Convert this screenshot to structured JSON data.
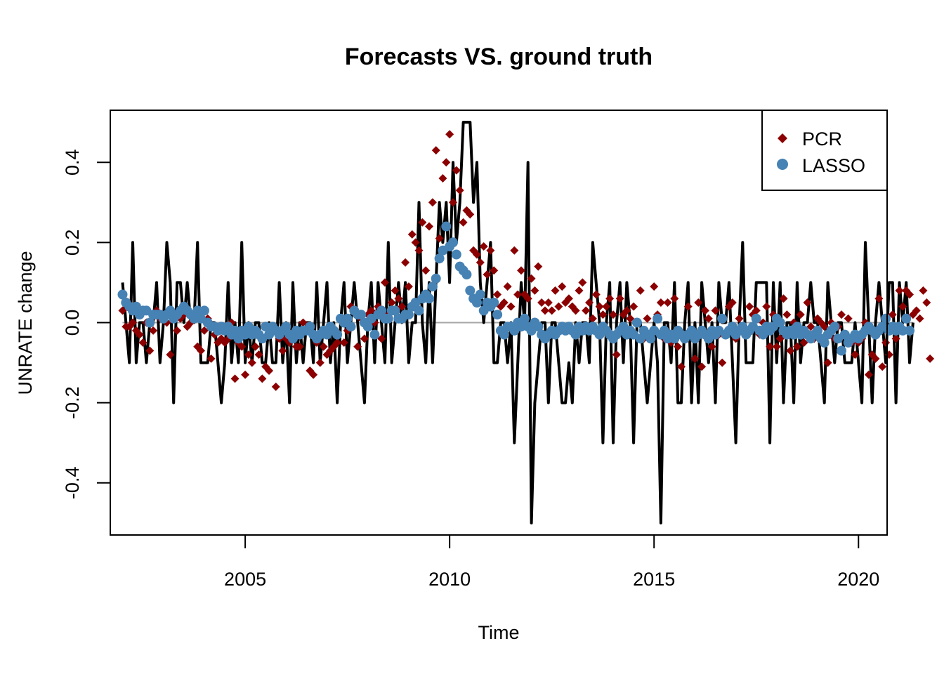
{
  "chart_data": {
    "type": "line",
    "title": "Forecasts VS. ground truth",
    "xlabel": "Time",
    "ylabel": "UNRATE change",
    "xlim": [
      2001.7,
      2020.7
    ],
    "ylim": [
      -0.53,
      0.53
    ],
    "x_ticks": [
      2005,
      2010,
      2015,
      2020
    ],
    "x_tick_labels": [
      "2005",
      "2010",
      "2015",
      "2020"
    ],
    "y_ticks": [
      -0.4,
      -0.2,
      0.0,
      0.2,
      0.4
    ],
    "y_tick_labels": [
      "-0.4",
      "-0.2",
      "0.0",
      "0.2",
      "0.4"
    ],
    "reference_line_y": 0,
    "legend_position": "top-right",
    "colors": {
      "truth": "#000000",
      "pcr": "#8B0000",
      "lasso": "#4682B4",
      "reference": "#A6A6A6"
    },
    "series": [
      {
        "key": "truth",
        "style": "line",
        "x_start": 2002.0,
        "x_step": 0.0833333,
        "values": [
          0.1,
          0.0,
          -0.1,
          0.2,
          -0.1,
          0.0,
          0.0,
          -0.1,
          0.0,
          0.0,
          0.1,
          -0.1,
          0.0,
          0.2,
          0.1,
          -0.2,
          0.1,
          0.1,
          0.0,
          0.1,
          0.0,
          0.0,
          0.2,
          -0.1,
          -0.1,
          -0.1,
          0.0,
          0.0,
          -0.1,
          -0.2,
          -0.1,
          0.1,
          -0.1,
          0.0,
          -0.1,
          0.2,
          -0.1,
          0.0,
          -0.1,
          0.0,
          0.0,
          -0.1,
          -0.1,
          0.0,
          -0.1,
          -0.1,
          0.1,
          -0.1,
          0.0,
          -0.2,
          0.1,
          -0.1,
          0.0,
          -0.1,
          0.0,
          0.0,
          -0.1,
          0.1,
          -0.1,
          0.0,
          0.1,
          -0.1,
          0.0,
          -0.2,
          0.0,
          0.1,
          -0.1,
          0.0,
          0.1,
          0.0,
          -0.1,
          -0.2,
          0.0,
          0.1,
          -0.1,
          0.1,
          0.0,
          -0.1,
          0.2,
          -0.1,
          0.0,
          0.1,
          0.0,
          0.1,
          -0.1,
          0.0,
          0.0,
          0.3,
          0.0,
          -0.1,
          0.1,
          -0.1,
          0.1,
          0.3,
          0.2,
          0.3,
          0.1,
          0.4,
          0.2,
          0.3,
          0.5,
          0.5,
          0.5,
          0.3,
          0.4,
          0.1,
          0.0,
          0.1,
          0.2,
          -0.1,
          -0.1,
          0.0,
          0.0,
          -0.1,
          0.0,
          -0.3,
          -0.1,
          0.1,
          0.0,
          0.4,
          -0.5,
          -0.2,
          -0.1,
          0.0,
          0.0,
          -0.2,
          0.0,
          0.0,
          -0.1,
          -0.2,
          -0.2,
          -0.1,
          -0.2,
          0.0,
          -0.1,
          0.0,
          0.0,
          -0.1,
          0.2,
          0.1,
          0.0,
          -0.3,
          0.0,
          0.1,
          -0.3,
          0.0,
          0.1,
          -0.1,
          0.1,
          0.0,
          -0.3,
          0.0,
          0.0,
          -0.1,
          -0.2,
          -0.1,
          0.0,
          -0.1,
          -0.5,
          0.0,
          0.0,
          -0.1,
          0.1,
          -0.2,
          -0.2,
          0.0,
          0.1,
          -0.2,
          0.0,
          -0.2,
          0.1,
          0.0,
          -0.1,
          0.0,
          -0.2,
          0.1,
          0.0,
          0.0,
          0.1,
          -0.1,
          -0.3,
          0.0,
          0.2,
          -0.1,
          -0.1,
          -0.1,
          0.1,
          0.1,
          0.1,
          0.1,
          -0.3,
          0.1,
          -0.1,
          0.1,
          -0.2,
          0.0,
          0.0,
          -0.2,
          0.1,
          -0.1,
          0.0,
          0.0,
          0.1,
          0.0,
          0.0,
          -0.1,
          -0.2,
          0.1,
          0.0,
          -0.1,
          0.0,
          0.0,
          -0.1,
          -0.1,
          -0.1,
          0.0,
          -0.1,
          -0.2,
          0.2,
          0.0,
          -0.2,
          0.0,
          0.1,
          0.0,
          -0.1,
          0.1,
          0.1,
          -0.2,
          0.1,
          0.0,
          0.1,
          -0.1,
          0.0
        ]
      },
      {
        "key": "pcr",
        "name": "PCR",
        "style": "points",
        "x_start": 2002.0,
        "x_step": 0.0833333,
        "values": [
          0.03,
          -0.01,
          -0.01,
          0.0,
          -0.02,
          -0.03,
          -0.05,
          0.0,
          -0.07,
          -0.02,
          0.03,
          0.01,
          0.01,
          0.0,
          -0.08,
          0.01,
          -0.02,
          0.01,
          0.02,
          -0.01,
          0.0,
          0.02,
          -0.06,
          -0.07,
          -0.02,
          0.01,
          -0.09,
          -0.03,
          -0.05,
          -0.04,
          -0.05,
          -0.04,
          0.0,
          -0.14,
          -0.05,
          -0.06,
          -0.13,
          -0.08,
          -0.1,
          -0.06,
          -0.08,
          -0.14,
          -0.11,
          -0.12,
          -0.02,
          -0.16,
          -0.04,
          -0.07,
          -0.04,
          -0.05,
          -0.04,
          -0.06,
          -0.06,
          0.0,
          -0.02,
          -0.12,
          -0.13,
          -0.05,
          -0.1,
          -0.06,
          -0.08,
          -0.07,
          -0.06,
          -0.05,
          0.01,
          -0.05,
          -0.02,
          0.04,
          0.03,
          -0.06,
          0.01,
          -0.04,
          0.02,
          0.03,
          0.0,
          0.04,
          -0.04,
          0.1,
          0.02,
          0.05,
          0.08,
          0.06,
          0.04,
          0.15,
          0.09,
          0.22,
          0.2,
          0.18,
          0.25,
          0.13,
          0.24,
          0.3,
          0.43,
          0.21,
          0.36,
          0.4,
          0.47,
          0.3,
          0.38,
          0.33,
          0.25,
          0.28,
          0.27,
          0.18,
          0.17,
          0.15,
          0.19,
          0.12,
          0.18,
          0.13,
          0.07,
          0.04,
          0.05,
          0.09,
          0.04,
          0.18,
          0.07,
          0.13,
          0.07,
          0.06,
          0.11,
          0.08,
          0.14,
          0.05,
          0.03,
          0.05,
          0.03,
          0.08,
          0.04,
          0.09,
          0.05,
          0.06,
          0.04,
          0.03,
          0.08,
          0.1,
          0.03,
          0.05,
          0.01,
          0.07,
          0.04,
          0.02,
          0.04,
          0.06,
          0.02,
          -0.08,
          0.06,
          0.02,
          0.03,
          0.01,
          0.04,
          0.0,
          0.08,
          -0.04,
          0.01,
          -0.03,
          0.09,
          0.02,
          0.05,
          -0.04,
          0.05,
          -0.05,
          0.06,
          -0.06,
          -0.11,
          -0.04,
          0.04,
          -0.03,
          -0.09,
          0.05,
          -0.11,
          0.03,
          0.01,
          -0.06,
          0.03,
          -0.03,
          -0.1,
          -0.03,
          0.04,
          0.05,
          -0.04,
          0.01,
          -0.02,
          -0.03,
          0.04,
          0.02,
          0.03,
          -0.03,
          0.0,
          0.04,
          -0.06,
          0.02,
          -0.06,
          -0.04,
          0.06,
          0.02,
          -0.07,
          0.0,
          -0.06,
          0.02,
          -0.05,
          0.05,
          -0.01,
          -0.04,
          0.01,
          0.0,
          -0.01,
          -0.1,
          0.0,
          -0.04,
          -0.01,
          0.02,
          -0.03,
          0.01,
          -0.05,
          -0.08,
          -0.05,
          -0.04,
          0.0,
          -0.13,
          -0.08,
          -0.09,
          0.06,
          -0.11,
          -0.05,
          -0.08,
          0.02,
          -0.04,
          0.08,
          0.04,
          0.08,
          0.07,
          0.02,
          0.03,
          0.01,
          0.08,
          0.05,
          -0.09
        ]
      },
      {
        "key": "lasso",
        "name": "LASSO",
        "style": "points",
        "x_start": 2002.0,
        "x_step": 0.0833333,
        "values": [
          0.07,
          0.05,
          0.04,
          0.03,
          0.04,
          0.02,
          0.03,
          0.03,
          0.0,
          0.02,
          0.02,
          0.02,
          0.01,
          0.02,
          0.03,
          0.01,
          0.02,
          0.03,
          0.04,
          0.03,
          0.02,
          0.01,
          0.03,
          0.01,
          0.03,
          0.0,
          -0.01,
          -0.01,
          -0.02,
          -0.01,
          -0.02,
          -0.01,
          -0.03,
          -0.02,
          -0.04,
          -0.02,
          -0.03,
          -0.01,
          -0.03,
          -0.02,
          -0.03,
          -0.04,
          -0.01,
          -0.03,
          -0.01,
          -0.02,
          -0.03,
          -0.02,
          -0.01,
          -0.03,
          -0.04,
          -0.02,
          -0.03,
          -0.02,
          -0.02,
          -0.01,
          -0.03,
          -0.04,
          -0.03,
          -0.02,
          -0.03,
          -0.01,
          -0.02,
          -0.03,
          0.01,
          0.0,
          0.01,
          -0.01,
          0.03,
          0.02,
          0.02,
          0.0,
          -0.01,
          0.01,
          -0.03,
          0.02,
          0.03,
          0.01,
          0.01,
          0.03,
          0.03,
          0.01,
          0.01,
          0.02,
          0.02,
          0.04,
          0.05,
          0.03,
          0.06,
          0.07,
          0.06,
          0.09,
          0.11,
          0.16,
          0.18,
          0.24,
          0.19,
          0.2,
          0.17,
          0.14,
          0.13,
          0.12,
          0.08,
          0.06,
          0.05,
          0.07,
          0.03,
          0.05,
          0.04,
          0.05,
          0.02,
          -0.02,
          -0.03,
          -0.01,
          -0.01,
          -0.02,
          0.0,
          -0.01,
          0.01,
          -0.01,
          -0.02,
          0.0,
          -0.01,
          -0.03,
          -0.04,
          -0.03,
          -0.02,
          -0.03,
          -0.02,
          -0.01,
          -0.02,
          -0.01,
          -0.02,
          -0.03,
          -0.01,
          -0.02,
          -0.01,
          -0.02,
          -0.01,
          -0.02,
          -0.03,
          -0.01,
          -0.02,
          -0.03,
          -0.04,
          -0.03,
          -0.02,
          -0.01,
          -0.03,
          -0.02,
          -0.03,
          0.0,
          -0.04,
          -0.02,
          -0.03,
          -0.04,
          -0.02,
          0.01,
          -0.03,
          -0.02,
          -0.04,
          -0.03,
          -0.04,
          -0.02,
          -0.03,
          -0.04,
          -0.03,
          -0.02,
          -0.04,
          -0.03,
          -0.02,
          -0.03,
          -0.04,
          -0.02,
          -0.03,
          -0.02,
          0.01,
          -0.03,
          -0.02,
          -0.01,
          -0.03,
          -0.02,
          -0.01,
          -0.03,
          -0.02,
          -0.01,
          0.01,
          -0.02,
          -0.03,
          -0.01,
          -0.02,
          -0.01,
          0.01,
          0.0,
          -0.02,
          -0.03,
          -0.02,
          -0.03,
          -0.01,
          -0.03,
          -0.02,
          -0.03,
          -0.04,
          -0.03,
          -0.02,
          -0.04,
          -0.05,
          -0.03,
          -0.02,
          -0.01,
          -0.04,
          -0.07,
          -0.03,
          -0.05,
          -0.04,
          -0.03,
          -0.04,
          -0.03,
          -0.02,
          -0.01,
          -0.02,
          -0.03,
          -0.02,
          -0.01,
          0.01,
          -0.02,
          -0.01,
          -0.02,
          -0.01,
          -0.02,
          0.01,
          -0.02
        ]
      }
    ]
  }
}
